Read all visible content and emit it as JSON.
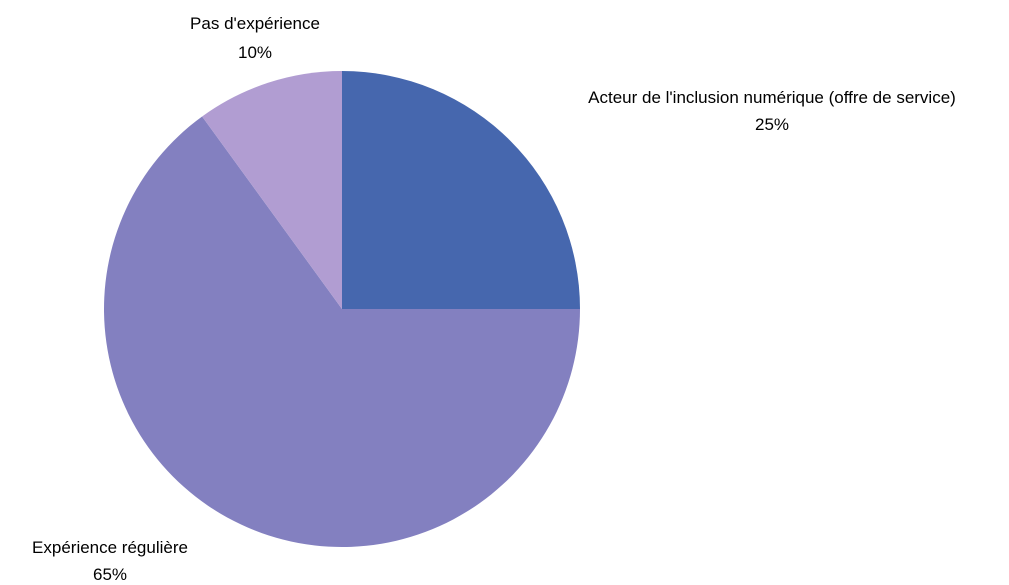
{
  "chart_data": {
    "type": "pie",
    "categories": [
      "Acteur de l'inclusion numérique (offre de service)",
      "Expérience régulière",
      "Pas d'expérience"
    ],
    "values": [
      25,
      65,
      10
    ],
    "value_labels": [
      "25%",
      "65%",
      "10%"
    ],
    "colors": [
      "#4667ae",
      "#8380c0",
      "#b19dd2"
    ],
    "start_angle_deg": 0,
    "direction": "clockwise",
    "legend": "none",
    "title": ""
  }
}
